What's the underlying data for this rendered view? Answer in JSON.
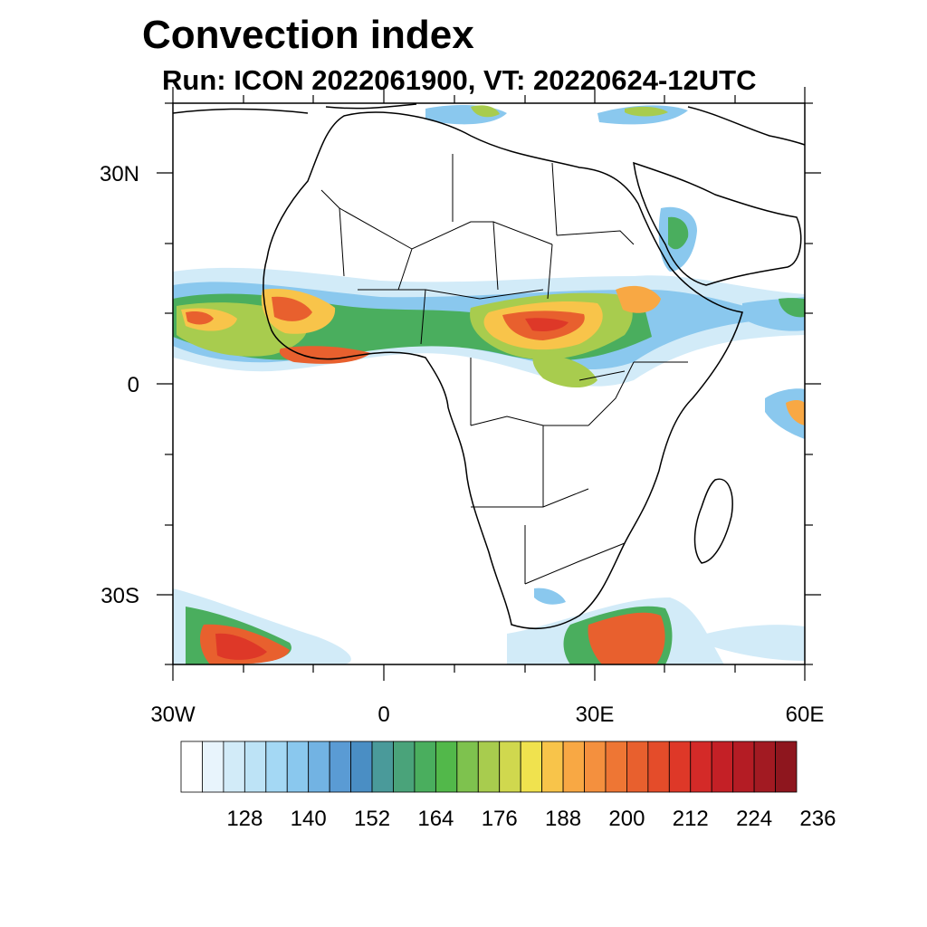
{
  "title": "Convection index",
  "subtitle": "Run: ICON 2022061900,  VT: 20220624-12UTC",
  "axes": {
    "lat_labels": [
      "30N",
      "0",
      "30S"
    ],
    "lon_labels": [
      "30W",
      "0",
      "30E",
      "60E"
    ]
  },
  "colorbar": {
    "labels": [
      "128",
      "140",
      "152",
      "164",
      "176",
      "188",
      "200",
      "212",
      "224",
      "236"
    ],
    "colors": [
      "#ffffff",
      "#e8f4fc",
      "#d2ebf8",
      "#bde3f6",
      "#a4d8f4",
      "#8ac8ee",
      "#72b3e3",
      "#5a9bd4",
      "#4a8ec4",
      "#4a9a9a",
      "#4aa37a",
      "#4aae5e",
      "#52b84a",
      "#7ec24e",
      "#a8cc4e",
      "#d0d84e",
      "#f0e24e",
      "#f8c44a",
      "#f8a844",
      "#f4903e",
      "#ee7634",
      "#e8602e",
      "#e44c2a",
      "#de3828",
      "#d42a28",
      "#c42026",
      "#b41c24",
      "#a21a22",
      "#8e161e"
    ]
  }
}
